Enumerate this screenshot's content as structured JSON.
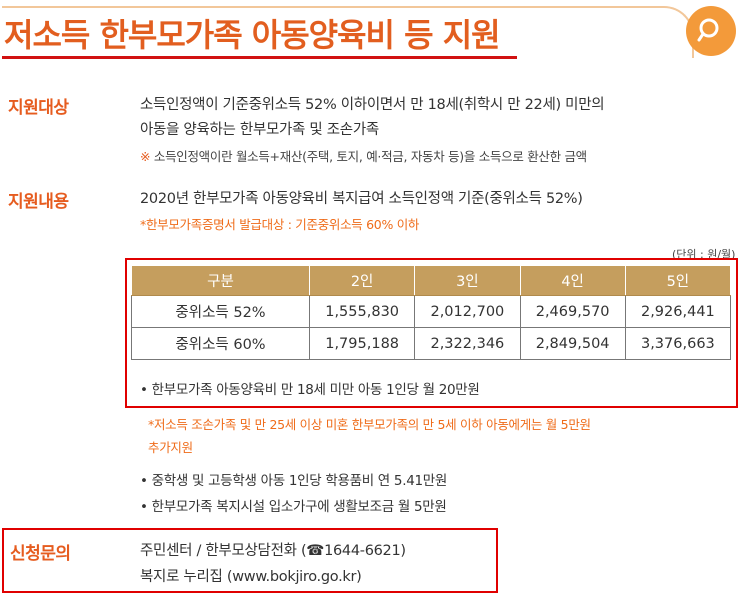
{
  "title": "저소득 한부모가족 아동양육비 등 지원",
  "sections": {
    "eligibility": {
      "label": "지원대상",
      "line1": "소득인정액이 기준중위소득 52% 이하이면서 만 18세(취학시 만 22세) 미만의",
      "line2": "아동을 양육하는 한부모가족 및 조손가족",
      "note_mark": "※",
      "note": "소득인정액이란 월소득+재산(주택, 토지, 예·적금, 자동차 등)을 소득으로 환산한 금액"
    },
    "content": {
      "label": "지원내용",
      "line1": "2020년 한부모가족 아동양육비 복지급여 소득인정액 기준(중위소득 52%)",
      "note": "*한부모가족증명서 발급대상 : 기준중위소득 60% 이하",
      "unit": "(단위 : 원/월)"
    },
    "inquiry": {
      "label": "신청문의",
      "line1": "주민센터 / 한부모상담전화 (☎1644-6621)",
      "line2": "복지로 누리집 (www.bokjiro.go.kr)"
    }
  },
  "table": {
    "headers": [
      "구분",
      "2인",
      "3인",
      "4인",
      "5인"
    ],
    "rows": [
      [
        "중위소득 52%",
        "1,555,830",
        "2,012,700",
        "2,469,570",
        "2,926,441"
      ],
      [
        "중위소득 60%",
        "1,795,188",
        "2,322,346",
        "2,849,504",
        "3,376,663"
      ]
    ]
  },
  "bullets": {
    "b1": "• 한부모가족 아동양육비 만 18세 미만 아동 1인당 월 20만원",
    "extra1": "*저소득 조손가족 및 만 25세 이상 미혼 한부모가족의 만 5세 이하 아동에게는 월 5만원",
    "extra2": "추가지원",
    "b2": "• 중학생 및 고등학생 아동 1인당 학용품비 연 5.41만원",
    "b3": "• 한부모가족 복지시설 입소가구에 생활보조금 월 5만원"
  },
  "colors": {
    "accent": "#e65c1f",
    "highlight_border": "#e00000",
    "table_header": "#c59e5e",
    "search_button": "#f39a3a"
  },
  "icons": {
    "search": "search-icon"
  }
}
